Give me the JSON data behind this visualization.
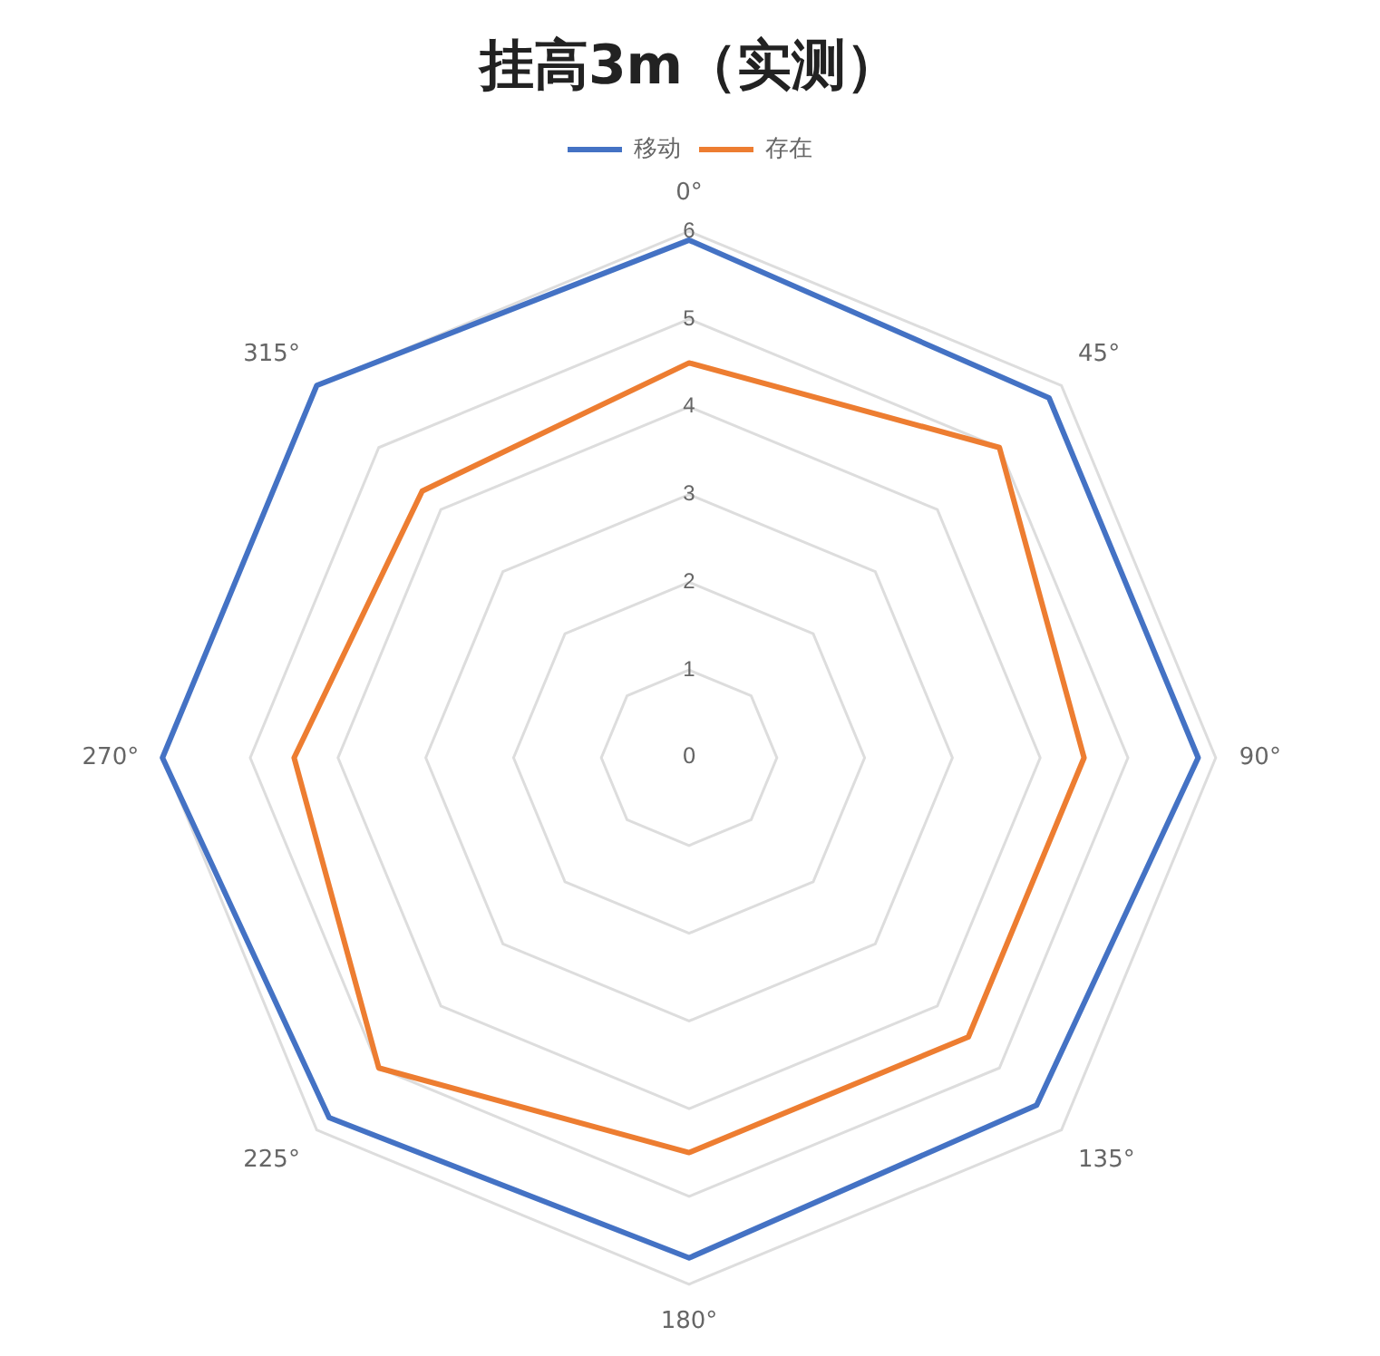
{
  "chart_data": {
    "type": "radar",
    "title": "挂高3m（实测）",
    "categories": [
      "0°",
      "45°",
      "90°",
      "135°",
      "180°",
      "225°",
      "270°",
      "315°"
    ],
    "series": [
      {
        "name": "移动",
        "color": "#4472c4",
        "values": [
          5.9,
          5.8,
          5.8,
          5.6,
          5.7,
          5.8,
          6.0,
          6.0
        ]
      },
      {
        "name": "存在",
        "color": "#ed7d31",
        "values": [
          4.5,
          5.0,
          4.5,
          4.5,
          4.5,
          5.0,
          4.5,
          4.3
        ]
      }
    ],
    "ylim": [
      0,
      6
    ],
    "yticks": [
      0,
      1,
      2,
      3,
      4,
      5,
      6
    ],
    "legend": "top",
    "grid": true,
    "marker": "none"
  }
}
